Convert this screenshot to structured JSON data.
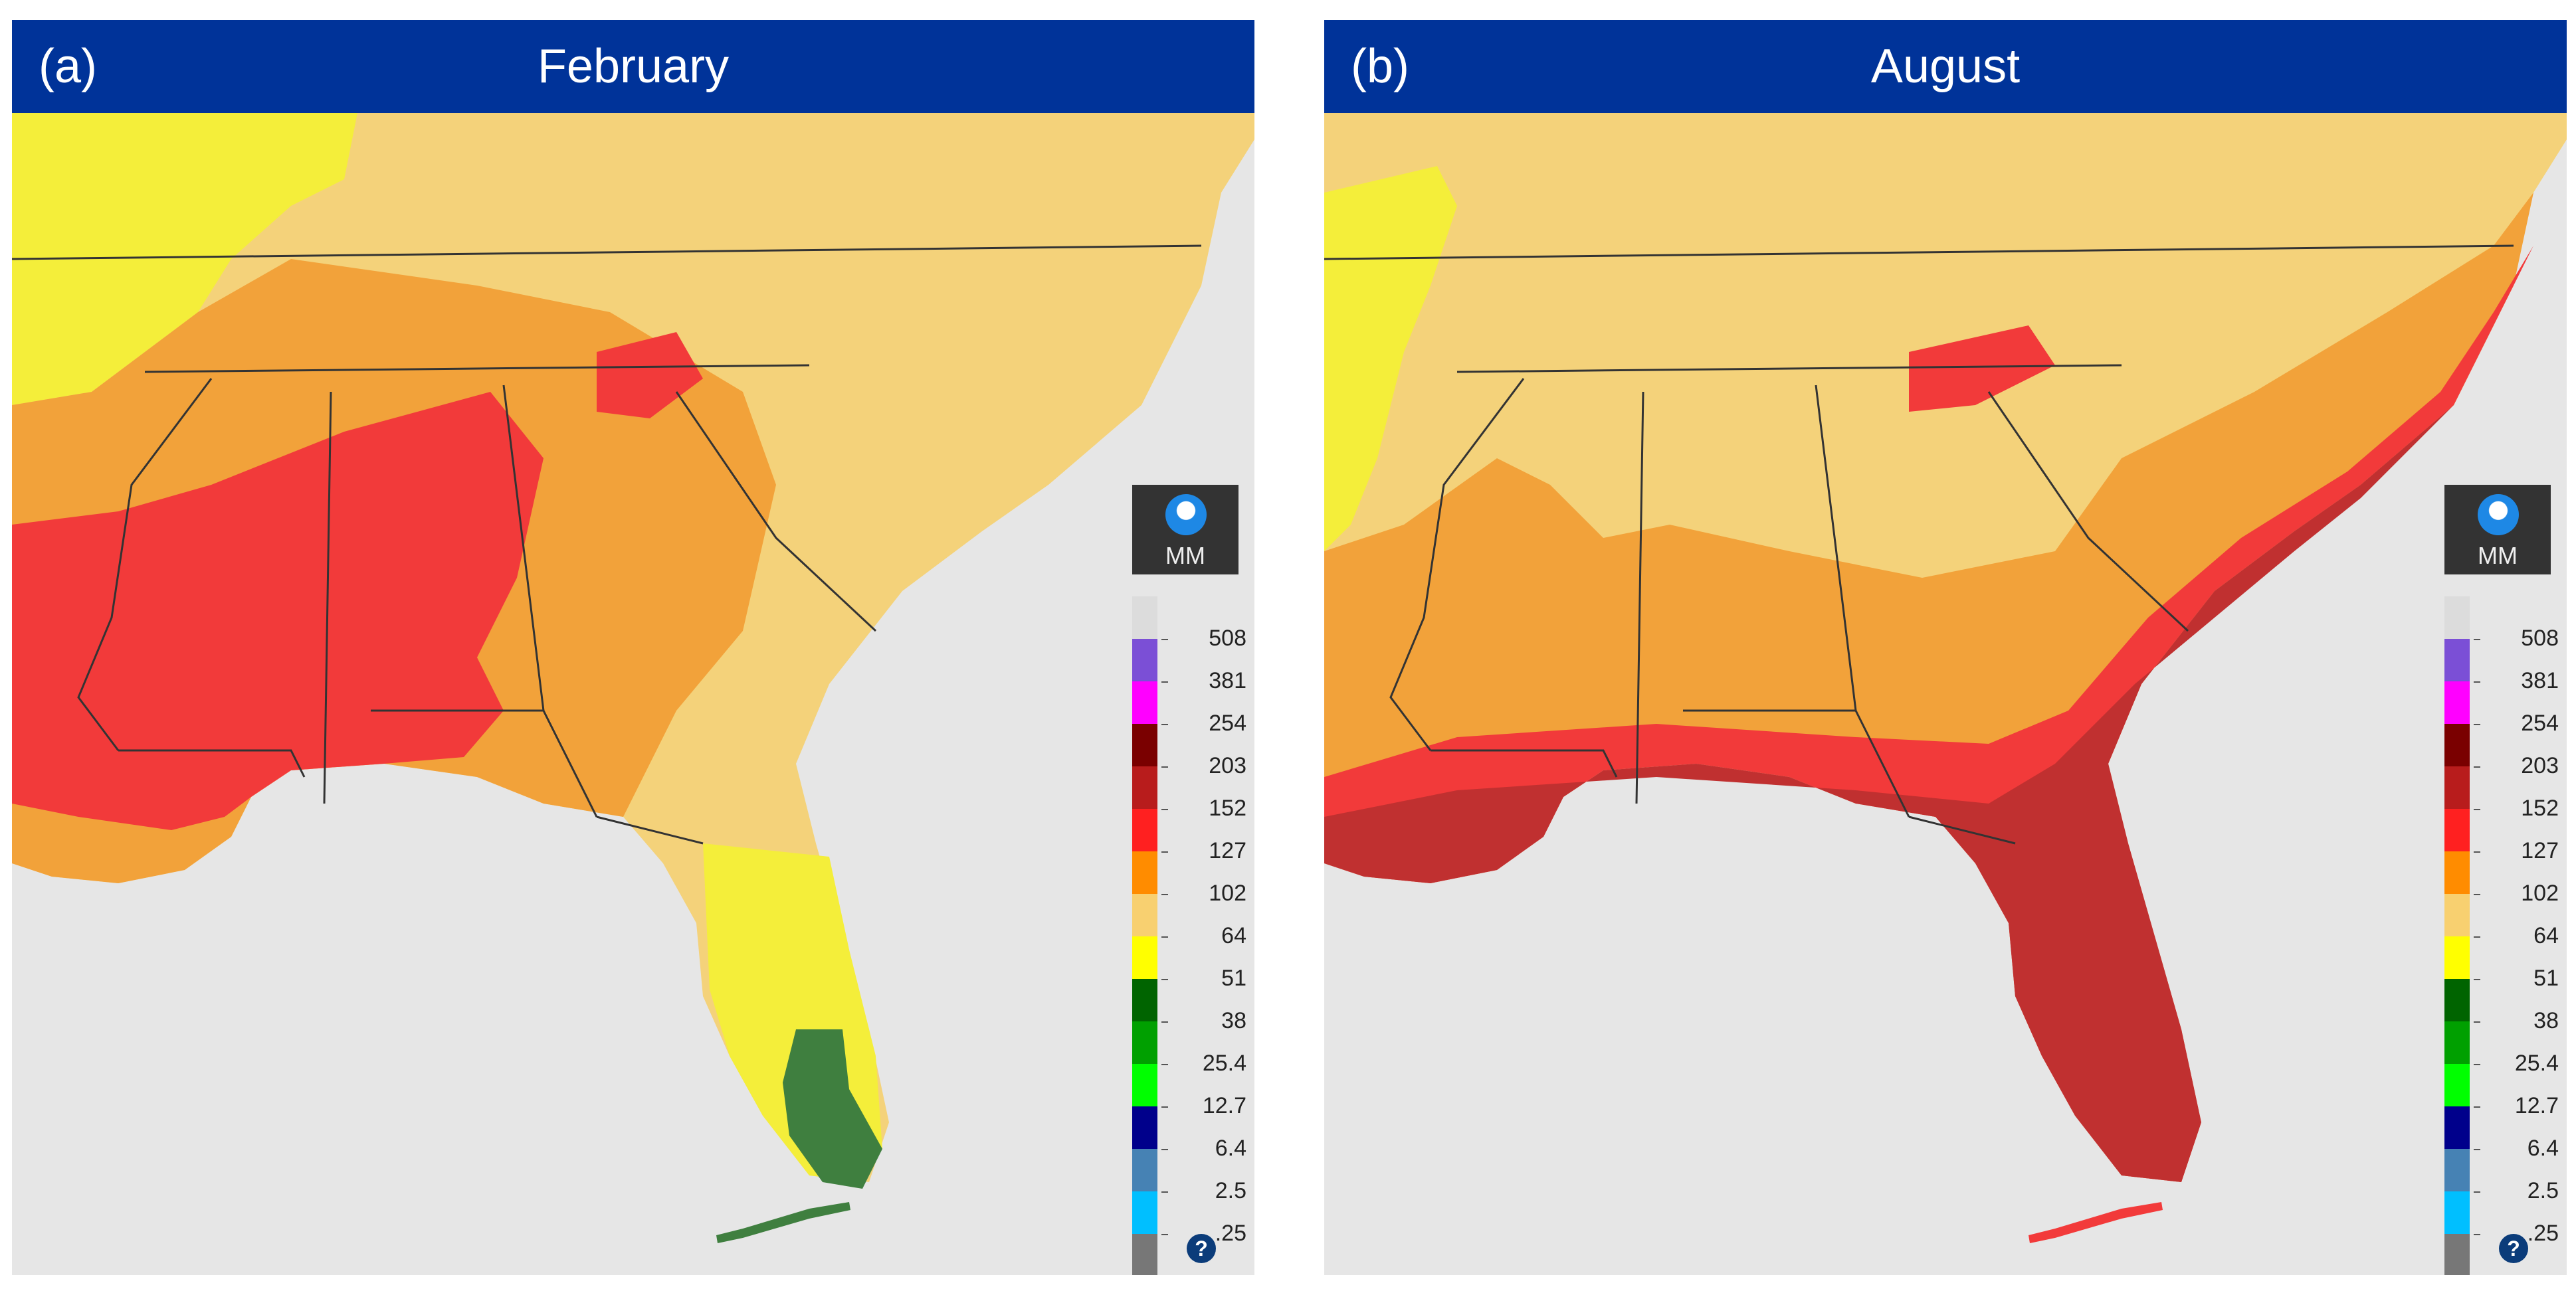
{
  "panels": [
    {
      "tag": "(a)",
      "title": "February"
    },
    {
      "tag": "(b)",
      "title": "August"
    }
  ],
  "legend": {
    "units": "MM",
    "logo": "noaa-logo",
    "values": [
      "508",
      "381",
      "254",
      "203",
      "152",
      "127",
      "102",
      "64",
      "51",
      "38",
      "25.4",
      "12.7",
      "6.4",
      "2.5",
      ".25"
    ],
    "colors": [
      "#dcdcdc",
      "#7b4fd6",
      "#ff00ff",
      "#7a0000",
      "#b81c1c",
      "#ff2020",
      "#ff8c00",
      "#f8d070",
      "#ffff00",
      "#006400",
      "#00a000",
      "#00ff00",
      "#00008b",
      "#4682b4",
      "#00bfff",
      "#777777"
    ],
    "help": "?"
  },
  "colors": {
    "header": "#003399",
    "ocean": "#e6e6e6",
    "feb_base": "#f4d27a",
    "aug_base": "#f4d27a"
  }
}
